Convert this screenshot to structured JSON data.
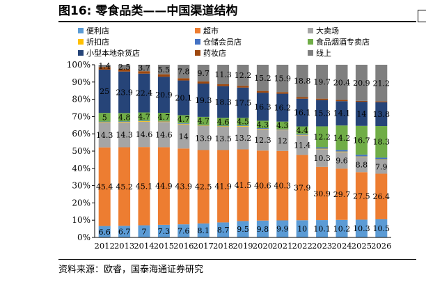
{
  "figure": {
    "title": "图16:  零食品类——中国渠道结构",
    "source": "资料来源：欧睿，国泰海通证券研究"
  },
  "chart_data": {
    "type": "bar",
    "stacked": true,
    "percent_stacked": true,
    "x": [
      "2012",
      "2013",
      "2014",
      "2015",
      "2016",
      "2017",
      "2018",
      "2019",
      "2020",
      "2021",
      "2022",
      "2023",
      "2024",
      "2025",
      "2026"
    ],
    "ylim": [
      0,
      100
    ],
    "y_ticks": [
      "0%",
      "10%",
      "20%",
      "30%",
      "40%",
      "50%",
      "60%",
      "70%",
      "80%",
      "90%",
      "100%"
    ],
    "legend_position": "top",
    "series": [
      {
        "name": "便利店",
        "color": "#5b9bd5",
        "values": [
          6.6,
          6.7,
          7,
          7.3,
          7.6,
          8.1,
          8.7,
          9.5,
          9.8,
          9.9,
          10,
          10.1,
          10.2,
          10.3,
          10.5
        ],
        "labels": [
          "6.6",
          "6.7",
          "7",
          "7.3",
          "7.6",
          "8.1",
          "8.7",
          "9.5",
          "9.8",
          "9.9",
          "10",
          "10.1",
          "10.2",
          "10.3",
          "10.5"
        ]
      },
      {
        "name": "超市",
        "color": "#ed7d31",
        "values": [
          45.4,
          45.2,
          45.1,
          44.9,
          43.9,
          42.5,
          41.9,
          41.5,
          40.6,
          40.3,
          37.9,
          30.9,
          29.7,
          27.5,
          26.4
        ],
        "labels": [
          "45.4",
          "45.2",
          "45.1",
          "44.9",
          "43.9",
          "42.5",
          "41.9",
          "41.5",
          "40.6",
          "40.3",
          "37.9",
          "30.9",
          "29.7",
          "27.5",
          "26.4"
        ]
      },
      {
        "name": "大卖场",
        "color": "#a5a5a5",
        "values": [
          14.3,
          14.3,
          14.6,
          14.6,
          14,
          13.9,
          13.5,
          13.2,
          12.3,
          12,
          11.4,
          10.3,
          9.6,
          8.8,
          7.9
        ],
        "labels": [
          "14.3",
          "14.3",
          "14.6",
          "14.6",
          "14",
          "13.9",
          "13.5",
          "13.2",
          "12.3",
          "12",
          "11.4",
          "10.3",
          "9.6",
          "8.8",
          "7.9"
        ]
      },
      {
        "name": "折扣店",
        "color": "#ffc000",
        "values": [
          0.3,
          0.3,
          0.3,
          0.3,
          0.3,
          0.3,
          0.3,
          0.3,
          0.3,
          0.3,
          0.3,
          0.3,
          0.3,
          0.3,
          0.3
        ],
        "labels": []
      },
      {
        "name": "仓储会员店",
        "color": "#4472c4",
        "values": [
          0.3,
          0.3,
          0.3,
          0.3,
          0.3,
          0.3,
          0.3,
          0.3,
          0.4,
          0.4,
          0.5,
          0.8,
          0.9,
          1.0,
          1.1
        ],
        "labels": []
      },
      {
        "name": "食品烟酒专卖店",
        "color": "#70ad47",
        "values": [
          5,
          4.8,
          4.7,
          4.7,
          4.7,
          4.7,
          4.6,
          4.5,
          4.3,
          4.3,
          4.4,
          12.2,
          14.2,
          16.7,
          18.3
        ],
        "labels": [
          "5",
          "4.8",
          "4.7",
          "4.7",
          "4.7",
          "4.7",
          "4.6",
          "4.5",
          "4.3",
          "4.3",
          "4.4",
          "12.2",
          "14.2",
          "16.7",
          "18.3"
        ]
      },
      {
        "name": "小型本地杂货店",
        "color": "#264478",
        "values": [
          25,
          23.9,
          22.4,
          20.9,
          20.1,
          19.3,
          18.3,
          17.5,
          16.3,
          16.2,
          16.1,
          15.3,
          14.1,
          14,
          13.8
        ],
        "labels": [
          "25",
          "23.9",
          "22.4",
          "20.9",
          "20.1",
          "19.3",
          "18.3",
          "17.5",
          "16.3",
          "16.2",
          "16.1",
          "15.3",
          "14.1",
          "14",
          "13.8"
        ]
      },
      {
        "name": "药妆店",
        "color": "#9e480e",
        "values": [
          1.4,
          1.4,
          1.4,
          1.4,
          1.3,
          1.2,
          1.1,
          1.0,
          1.0,
          0.9,
          0.9,
          0.8,
          0.7,
          0.5,
          0.5
        ],
        "labels": []
      },
      {
        "name": "线上",
        "color": "#7f7f7f",
        "values": [
          1.4,
          2.5,
          3.7,
          5.5,
          7.8,
          9.7,
          11.3,
          12.2,
          15.2,
          15.9,
          18.8,
          19.7,
          20.4,
          20.9,
          21.2
        ],
        "labels": [
          "1.4",
          "2.5",
          "3.7",
          "5.5",
          "7.8",
          "9.7",
          "11.3",
          "12.2",
          "15.2",
          "15.9",
          "18.8",
          "19.7",
          "20.4",
          "20.9",
          "21.2"
        ]
      }
    ]
  }
}
